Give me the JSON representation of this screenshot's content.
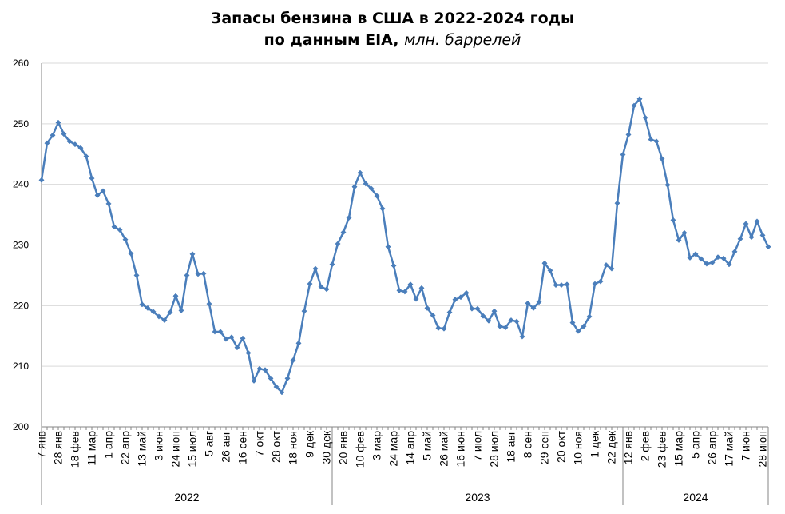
{
  "title": {
    "line1": "Запасы бензина в США в 2022-2024 годы",
    "line2": "по данным EIA,",
    "unit": "млн. баррелей"
  },
  "colors": {
    "series": "#4a7ebb",
    "grid": "#d9d9d9",
    "axis": "#868686"
  },
  "chart_data": {
    "type": "line",
    "title": "Запасы бензина в США в 2022-2024 годы по данным EIA, млн. баррелей",
    "ylim": [
      200,
      260
    ],
    "yticks": [
      200,
      210,
      220,
      230,
      240,
      250,
      260
    ],
    "grid": true,
    "legend": "none",
    "x_tick_labels": [
      "7 янв",
      "28 янв",
      "18 фев",
      "11 мар",
      "1 апр",
      "22 апр",
      "13 май",
      "3 июн",
      "24 июн",
      "15 июл",
      "5 авг",
      "26 авг",
      "16 сен",
      "7 окт",
      "28 окт",
      "18 ноя",
      "9 дек",
      "30 дек",
      "20 янв",
      "10 фев",
      "3 мар",
      "24 мар",
      "14 апр",
      "5 май",
      "26 май",
      "16 июн",
      "7 июл",
      "28 июл",
      "18 авг",
      "8 сен",
      "29 сен",
      "20 окт",
      "10 ноя",
      "1 дек",
      "22 дек",
      "12 янв",
      "2 фев",
      "23 фев",
      "15 мар",
      "5 апр",
      "26 апр",
      "17 май",
      "7 июн",
      "28 июн"
    ],
    "years": [
      {
        "label": "2022",
        "start": 0,
        "end": 52
      },
      {
        "label": "2023",
        "start": 52,
        "end": 104
      },
      {
        "label": "2024",
        "start": 104,
        "end": 130
      }
    ],
    "series": [
      {
        "values": [
          240.7,
          246.8,
          248.1,
          250.2,
          248.3,
          247.1,
          246.6,
          246.0,
          244.6,
          241.0,
          238.2,
          238.9,
          236.8,
          233.0,
          232.5,
          230.9,
          228.6,
          225.0,
          220.2,
          219.6,
          219.0,
          218.2,
          217.6,
          218.9,
          221.6,
          219.2,
          225.0,
          228.5,
          225.2,
          225.3,
          220.3,
          215.7,
          215.7,
          214.5,
          214.8,
          213.1,
          214.6,
          212.2,
          207.6,
          209.6,
          209.4,
          208.0,
          206.6,
          205.7,
          208.0,
          211.0,
          213.8,
          219.1,
          223.6,
          226.1,
          223.1,
          222.7,
          226.8,
          230.2,
          232.1,
          234.5,
          239.6,
          241.9,
          240.1,
          239.3,
          238.1,
          236.0,
          229.7,
          226.6,
          222.5,
          222.3,
          223.5,
          221.1,
          222.9,
          219.6,
          218.4,
          216.3,
          216.2,
          218.9,
          221.0,
          221.4,
          222.1,
          219.5,
          219.5,
          218.3,
          217.5,
          219.1,
          216.6,
          216.4,
          217.6,
          217.4,
          214.9,
          220.4,
          219.6,
          220.6,
          227.0,
          225.8,
          223.4,
          223.4,
          223.5,
          217.2,
          215.8,
          216.6,
          218.2,
          223.6,
          224.0,
          226.7,
          226.1,
          236.9,
          244.9,
          248.2,
          253.0,
          254.1,
          251.0,
          247.4,
          247.1,
          244.2,
          239.9,
          234.1,
          230.8,
          232.0,
          227.9,
          228.5,
          227.7,
          226.9,
          227.1,
          228.0,
          227.8,
          226.8,
          228.9,
          231.0,
          233.5,
          231.3,
          233.9,
          231.6,
          229.7
        ]
      }
    ]
  }
}
